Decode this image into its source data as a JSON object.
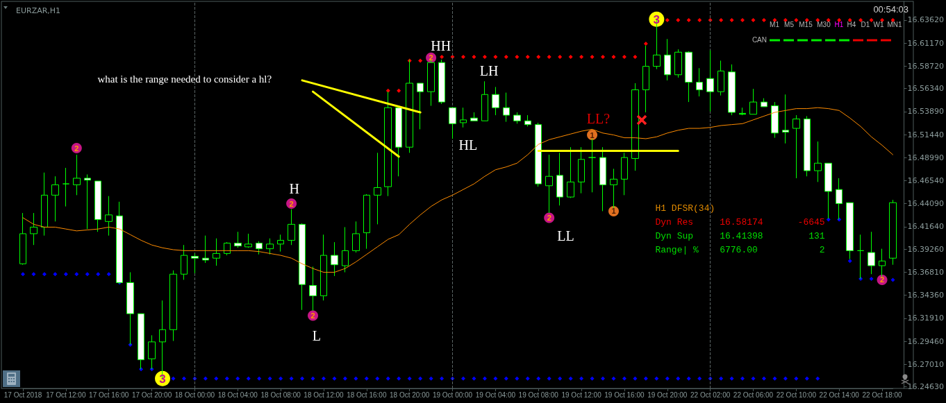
{
  "chart_data": {
    "type": "candlestick",
    "title": "EURZAR,H1",
    "categories": [
      "17 Oct 2018",
      null,
      null,
      null,
      "17 Oct 12:00",
      null,
      null,
      null,
      "17 Oct 16:00",
      null,
      null,
      null,
      "17 Oct 20:00",
      null,
      null,
      null,
      "18 Oct 00:00",
      null,
      null,
      null,
      "18 Oct 04:00",
      null,
      null,
      null,
      "18 Oct 08:00",
      null,
      null,
      null,
      "18 Oct 12:00",
      null,
      null,
      null,
      "18 Oct 16:00",
      null,
      null,
      null,
      "18 Oct 20:00",
      null,
      null,
      null,
      "19 Oct 00:00",
      null,
      null,
      null,
      "19 Oct 04:00",
      null,
      null,
      null,
      "19 Oct 08:00",
      null,
      null,
      null,
      "19 Oct 12:00",
      null,
      null,
      null,
      "19 Oct 16:00",
      null,
      null,
      null,
      "19 Oct 20:00",
      null,
      null,
      null,
      "22 Oct 02:00",
      null,
      null,
      null,
      "22 Oct 06:00",
      null,
      null,
      null,
      "22 Oct 10:00",
      null,
      null,
      null,
      "22 Oct 14:00",
      null,
      null,
      null,
      "22 Oct 18:00",
      null
    ],
    "color": "#00ff00",
    "colors": [
      "#000000",
      "#000000",
      "#000000",
      "#000000",
      "#00ff00",
      "#000000",
      "#ffffff",
      "#ffffff",
      "#000000",
      "#ffffff",
      "#ffffff",
      "#ffffff",
      "#000000",
      "#000000",
      "#000000",
      "#000000",
      "#ffffff",
      "#ffffff",
      "#000000",
      "#000000",
      "#ffffff",
      "#000000",
      "#ffffff",
      "#000000",
      "#000000",
      "#000000",
      "#ffffff",
      "#ffffff",
      "#000000",
      "#ffffff",
      "#000000",
      "#000000",
      "#000000",
      "#000000",
      "#000000",
      "#ffffff",
      "#000000",
      "#ffffff",
      "#000000",
      "#ffffff",
      "#ffffff",
      "#000000",
      "#ffffff",
      "#000000",
      "#ffffff",
      "#ffffff",
      "#ffffff",
      "#ffffff",
      "#ffffff",
      "#000000",
      "#ffffff",
      "#000000",
      "#000000",
      "#00ff00",
      "#ffffff",
      "#000000",
      "#000000",
      "#000000",
      "#000000",
      "#000000",
      "#ffffff",
      "#000000",
      "#ffffff",
      "#ffffff",
      "#ffffff",
      "#000000",
      "#ffffff",
      "#00ff00",
      "#000000",
      "#ffffff",
      "#ffffff",
      "#ffffff",
      "#000000",
      "#ffffff",
      "#000000",
      "#ffffff",
      "#ffffff",
      "#ffffff",
      "#00ff00",
      "#ffffff",
      "#000000",
      "#000000"
    ],
    "ohlc": [
      [
        16.377,
        16.431,
        16.376,
        16.409
      ],
      [
        16.409,
        16.431,
        16.397,
        16.416
      ],
      [
        16.416,
        16.474,
        16.407,
        16.45
      ],
      [
        16.45,
        16.47,
        16.422,
        16.461
      ],
      [
        16.462,
        16.479,
        16.438,
        16.462
      ],
      [
        16.461,
        16.493,
        16.45,
        16.468
      ],
      [
        16.468,
        16.472,
        16.414,
        16.466
      ],
      [
        16.465,
        16.465,
        16.411,
        16.424
      ],
      [
        16.422,
        16.449,
        16.407,
        16.429
      ],
      [
        16.428,
        16.443,
        16.356,
        16.357
      ],
      [
        16.357,
        16.368,
        16.291,
        16.324
      ],
      [
        16.324,
        16.324,
        16.265,
        16.275
      ],
      [
        16.276,
        16.301,
        16.265,
        16.294
      ],
      [
        16.294,
        16.338,
        16.254,
        16.307
      ],
      [
        16.307,
        16.37,
        16.295,
        16.366
      ],
      [
        16.366,
        16.397,
        16.36,
        16.386
      ],
      [
        16.385,
        16.388,
        16.367,
        16.383
      ],
      [
        16.383,
        16.407,
        16.378,
        16.381
      ],
      [
        16.383,
        16.404,
        16.375,
        16.388
      ],
      [
        16.388,
        16.4,
        16.386,
        16.399
      ],
      [
        16.399,
        16.411,
        16.394,
        16.396
      ],
      [
        16.395,
        16.409,
        16.394,
        16.398
      ],
      [
        16.399,
        16.401,
        16.387,
        16.393
      ],
      [
        16.393,
        16.404,
        16.387,
        16.398
      ],
      [
        16.398,
        16.408,
        16.39,
        16.402
      ],
      [
        16.402,
        16.435,
        16.397,
        16.419
      ],
      [
        16.419,
        16.42,
        16.328,
        16.355
      ],
      [
        16.354,
        16.374,
        16.327,
        16.343
      ],
      [
        16.343,
        16.408,
        16.338,
        16.386
      ],
      [
        16.386,
        16.4,
        16.364,
        16.376
      ],
      [
        16.375,
        16.416,
        16.368,
        16.391
      ],
      [
        16.391,
        16.422,
        16.389,
        16.409
      ],
      [
        16.41,
        16.451,
        16.393,
        16.45
      ],
      [
        16.45,
        16.495,
        16.419,
        16.458
      ],
      [
        16.459,
        16.56,
        16.449,
        16.543
      ],
      [
        16.543,
        16.543,
        16.47,
        16.501
      ],
      [
        16.501,
        16.594,
        16.495,
        16.569
      ],
      [
        16.569,
        16.569,
        16.52,
        16.56
      ],
      [
        16.56,
        16.594,
        16.545,
        16.591
      ],
      [
        16.591,
        16.594,
        16.547,
        16.549
      ],
      [
        16.543,
        16.543,
        16.51,
        16.526
      ],
      [
        16.527,
        16.543,
        16.522,
        16.53
      ],
      [
        16.532,
        16.538,
        16.529,
        16.529
      ],
      [
        16.529,
        16.571,
        16.529,
        16.557
      ],
      [
        16.557,
        16.565,
        16.535,
        16.543
      ],
      [
        16.543,
        16.559,
        16.528,
        16.535
      ],
      [
        16.535,
        16.538,
        16.526,
        16.529
      ],
      [
        16.529,
        16.535,
        16.523,
        16.525
      ],
      [
        16.525,
        16.527,
        16.459,
        16.462
      ],
      [
        16.46,
        16.493,
        16.431,
        16.47
      ],
      [
        16.471,
        16.495,
        16.439,
        16.448
      ],
      [
        16.448,
        16.501,
        16.447,
        16.464
      ],
      [
        16.464,
        16.501,
        16.452,
        16.488
      ],
      [
        16.49,
        16.51,
        16.453,
        16.49
      ],
      [
        16.49,
        16.501,
        16.433,
        16.461
      ],
      [
        16.461,
        16.478,
        16.436,
        16.467
      ],
      [
        16.467,
        16.495,
        16.45,
        16.49
      ],
      [
        16.489,
        16.569,
        16.476,
        16.562
      ],
      [
        16.562,
        16.609,
        16.538,
        16.587
      ],
      [
        16.587,
        16.636,
        16.584,
        16.599
      ],
      [
        16.599,
        16.616,
        16.572,
        16.578
      ],
      [
        16.578,
        16.605,
        16.575,
        16.602
      ],
      [
        16.602,
        16.603,
        16.549,
        16.57
      ],
      [
        16.57,
        16.585,
        16.555,
        16.562
      ],
      [
        16.574,
        16.604,
        16.539,
        16.56
      ],
      [
        16.56,
        16.593,
        16.556,
        16.582
      ],
      [
        16.581,
        16.589,
        16.535,
        16.538
      ],
      [
        16.536,
        16.543,
        16.535,
        16.537
      ],
      [
        16.536,
        16.563,
        16.536,
        16.549
      ],
      [
        16.549,
        16.553,
        16.544,
        16.544
      ],
      [
        16.545,
        16.549,
        16.511,
        16.516
      ],
      [
        16.519,
        16.557,
        16.505,
        16.517
      ],
      [
        16.521,
        16.535,
        16.468,
        16.531
      ],
      [
        16.531,
        16.534,
        16.47,
        16.476
      ],
      [
        16.476,
        16.507,
        16.464,
        16.484
      ],
      [
        16.484,
        16.484,
        16.425,
        16.454
      ],
      [
        16.456,
        16.468,
        16.424,
        16.441
      ],
      [
        16.442,
        16.442,
        16.382,
        16.391
      ],
      [
        16.391,
        16.408,
        16.361,
        16.391
      ],
      [
        16.389,
        16.411,
        16.366,
        16.375
      ],
      [
        16.375,
        16.393,
        16.363,
        16.38
      ],
      [
        16.383,
        16.445,
        16.376,
        16.442
      ]
    ],
    "series": [
      {
        "type": "line",
        "color": "#ff8c00",
        "marker": "none",
        "values": [
          16.426,
          16.419,
          16.416,
          16.416,
          16.414,
          16.412,
          16.413,
          16.414,
          16.416,
          16.414,
          16.408,
          16.402,
          16.397,
          16.394,
          16.392,
          16.391,
          16.391,
          16.391,
          16.391,
          16.391,
          16.391,
          16.391,
          16.39,
          16.388,
          16.386,
          16.383,
          16.377,
          16.372,
          16.368,
          16.368,
          16.372,
          16.379,
          16.387,
          16.395,
          16.403,
          16.408,
          16.419,
          16.429,
          16.438,
          16.445,
          16.45,
          16.456,
          16.462,
          16.47,
          16.477,
          16.48,
          16.484,
          16.493,
          16.504,
          16.509,
          16.512,
          16.515,
          16.518,
          16.52,
          16.516,
          16.514,
          16.511,
          16.511,
          16.51,
          16.512,
          16.516,
          16.519,
          16.521,
          16.521,
          16.522,
          16.524,
          16.525,
          16.526,
          16.53,
          16.534,
          16.538,
          16.54,
          16.542,
          16.542,
          16.543,
          16.542,
          16.54,
          16.532,
          16.523,
          16.512,
          16.503,
          16.493
        ]
      },
      {
        "type": "scatter",
        "color": "#ff0000",
        "marker": "diamond",
        "values": [
          null,
          null,
          null,
          null,
          null,
          null,
          null,
          null,
          null,
          null,
          null,
          null,
          null,
          null,
          null,
          null,
          null,
          null,
          null,
          null,
          null,
          null,
          null,
          null,
          null,
          null,
          null,
          null,
          null,
          null,
          null,
          null,
          null,
          null,
          16.561,
          16.561,
          16.593,
          16.593,
          null,
          16.597,
          16.597,
          16.597,
          16.597,
          16.597,
          16.597,
          16.597,
          16.597,
          16.597,
          16.597,
          16.597,
          16.597,
          16.597,
          16.597,
          16.597,
          16.597,
          16.597,
          16.597,
          16.597,
          16.611,
          null,
          16.636,
          16.636,
          16.636,
          16.636,
          16.636,
          16.636,
          16.636,
          16.636,
          16.636,
          16.636,
          16.636,
          16.636,
          16.636,
          16.636,
          16.636,
          16.636,
          16.636,
          16.636,
          16.636,
          16.636,
          16.636,
          16.636
        ]
      },
      {
        "type": "scatter",
        "color": "#0000ff",
        "marker": "diamond",
        "values": [
          16.366,
          16.366,
          16.366,
          16.366,
          16.366,
          16.366,
          16.366,
          16.366,
          16.366,
          16.357,
          16.291,
          16.265,
          16.265,
          null,
          16.255,
          16.255,
          16.255,
          16.255,
          16.255,
          16.255,
          16.255,
          16.255,
          16.255,
          16.255,
          16.255,
          16.255,
          16.255,
          16.255,
          16.255,
          16.255,
          16.255,
          16.255,
          16.255,
          16.255,
          16.255,
          16.255,
          16.255,
          16.255,
          16.255,
          16.255,
          16.255,
          16.255,
          16.255,
          16.255,
          16.255,
          16.255,
          16.255,
          16.255,
          16.255,
          16.255,
          16.255,
          16.255,
          16.255,
          16.255,
          16.255,
          16.255,
          16.255,
          16.255,
          16.255,
          16.255,
          16.255,
          16.255,
          16.255,
          16.255,
          16.255,
          16.255,
          16.255,
          16.255,
          16.255,
          16.255,
          16.255,
          16.255,
          16.255,
          16.255,
          16.255,
          16.424,
          16.424,
          16.38,
          16.361,
          16.361,
          null,
          16.36
        ]
      },
      {
        "type": "line",
        "color": "#ffff00",
        "marker": "none",
        "values": [
          null,
          null,
          null,
          null,
          null,
          null,
          null,
          null,
          null,
          null,
          null,
          null,
          null,
          null,
          null,
          null,
          null,
          null,
          null,
          null,
          null,
          null,
          null,
          null,
          null,
          null,
          null,
          null,
          null,
          null,
          null,
          null,
          null,
          null,
          null,
          null,
          null,
          null,
          null,
          null,
          null,
          null,
          null,
          null,
          null,
          null,
          null,
          null,
          16.497,
          16.497,
          16.497,
          16.497,
          16.497,
          16.497,
          16.497,
          16.497,
          16.497,
          16.497,
          16.497,
          16.497,
          16.497,
          16.497,
          null,
          null,
          null,
          null,
          null,
          null,
          null,
          null,
          null,
          null,
          null,
          null,
          null,
          null,
          null,
          null,
          null,
          null,
          null,
          null
        ]
      },
      {
        "type": "line",
        "color": "#ffff00",
        "marker": "none",
        "values": [
          null,
          null,
          null,
          null,
          null,
          null,
          null,
          null,
          null,
          null,
          null,
          null,
          null,
          null,
          null,
          null,
          null,
          null,
          null,
          null,
          null,
          null,
          null,
          null,
          null,
          null,
          16.572,
          null,
          null,
          null,
          null,
          null,
          null,
          null,
          null,
          null,
          null,
          16.538,
          null,
          null,
          null,
          null,
          null,
          null,
          null,
          null,
          null,
          null,
          null,
          null,
          null,
          null,
          null,
          null,
          null,
          null,
          null,
          null,
          null,
          null,
          null,
          null,
          null,
          null,
          null,
          null,
          null,
          null,
          null,
          null,
          null,
          null,
          null,
          null,
          null,
          null,
          null,
          null,
          null,
          null,
          null,
          null
        ]
      },
      {
        "type": "line",
        "color": "#ffff00",
        "marker": "none",
        "values": [
          null,
          null,
          null,
          null,
          null,
          null,
          null,
          null,
          null,
          null,
          null,
          null,
          null,
          null,
          null,
          null,
          null,
          null,
          null,
          null,
          null,
          null,
          null,
          null,
          null,
          null,
          null,
          16.56,
          null,
          null,
          null,
          null,
          null,
          null,
          null,
          16.491,
          null,
          null,
          null,
          null,
          null,
          null,
          null,
          null,
          null,
          null,
          null,
          null,
          null,
          null,
          null,
          null,
          null,
          null,
          null,
          null,
          null,
          null,
          null,
          null,
          null,
          null,
          null,
          null,
          null,
          null,
          null,
          null,
          null,
          null,
          null,
          null,
          null,
          null,
          null,
          null,
          null,
          null,
          null,
          null,
          null,
          null
        ]
      },
      {
        "type": "scatter",
        "color": "#c71585",
        "marker": "circle",
        "values": [
          null,
          null,
          null,
          null,
          null,
          16.5,
          null,
          null,
          null,
          null,
          null,
          null,
          null,
          null,
          null,
          null,
          null,
          null,
          null,
          null,
          null,
          null,
          null,
          null,
          null,
          16.441,
          null,
          16.322,
          null,
          null,
          null,
          null,
          null,
          null,
          null,
          null,
          null,
          null,
          16.596,
          null,
          null,
          null,
          null,
          null,
          null,
          null,
          null,
          null,
          null,
          16.426,
          null,
          null,
          null,
          null,
          null,
          null,
          null,
          null,
          null,
          null,
          null,
          null,
          null,
          null,
          null,
          null,
          null,
          null,
          null,
          null,
          null,
          null,
          null,
          null,
          null,
          null,
          null,
          null,
          null,
          null,
          16.36,
          null
        ]
      },
      {
        "type": "scatter",
        "color": "#e07020",
        "marker": "circle",
        "values": [
          null,
          null,
          null,
          null,
          null,
          null,
          null,
          null,
          null,
          null,
          null,
          null,
          null,
          null,
          null,
          null,
          null,
          null,
          null,
          null,
          null,
          null,
          null,
          null,
          null,
          null,
          null,
          null,
          null,
          null,
          null,
          null,
          null,
          null,
          null,
          null,
          null,
          null,
          null,
          null,
          null,
          null,
          null,
          null,
          null,
          null,
          null,
          null,
          null,
          null,
          null,
          null,
          null,
          16.514,
          null,
          16.433,
          null,
          null,
          null,
          null,
          null,
          null,
          null,
          null,
          null,
          null,
          null,
          null,
          null,
          null,
          null,
          null,
          null,
          null,
          null,
          null,
          null,
          null,
          null,
          null,
          null,
          null
        ]
      },
      {
        "type": "scatter",
        "color": "#ffff00",
        "marker": "circle",
        "values": [
          null,
          null,
          null,
          null,
          null,
          null,
          null,
          null,
          null,
          null,
          null,
          null,
          null,
          16.255,
          null,
          null,
          null,
          null,
          null,
          null,
          null,
          null,
          null,
          null,
          null,
          null,
          null,
          null,
          null,
          null,
          null,
          null,
          null,
          null,
          null,
          null,
          null,
          null,
          null,
          null,
          null,
          null,
          null,
          null,
          null,
          null,
          null,
          null,
          null,
          null,
          null,
          null,
          null,
          null,
          null,
          null,
          null,
          null,
          null,
          16.637,
          null,
          null,
          null,
          null,
          null,
          null,
          null,
          null,
          null,
          null,
          null,
          null,
          null,
          null,
          null,
          null,
          null,
          null,
          null,
          null,
          null,
          null
        ]
      }
    ],
    "ylim": [
      16.2445,
      16.656
    ],
    "yticks": [
      {
        "value": 16.6362,
        "label": "16.63620"
      },
      {
        "value": 16.6117,
        "label": "16.61170"
      },
      {
        "value": 16.5872,
        "label": "16.58720"
      },
      {
        "value": 16.5634,
        "label": "16.56340"
      },
      {
        "value": 16.5389,
        "label": "16.53890"
      },
      {
        "value": 16.5144,
        "label": "16.51440"
      },
      {
        "value": 16.4899,
        "label": "16.48990"
      },
      {
        "value": 16.4654,
        "label": "16.46540"
      },
      {
        "value": 16.4409,
        "label": "16.44090"
      },
      {
        "value": 16.4164,
        "label": "16.41640"
      },
      {
        "value": 16.3926,
        "label": "16.39260"
      },
      {
        "value": 16.3681,
        "label": "16.36810"
      },
      {
        "value": 16.3436,
        "label": "16.34360"
      },
      {
        "value": 16.3191,
        "label": "16.31910"
      },
      {
        "value": 16.2946,
        "label": "16.29460"
      },
      {
        "value": 16.2701,
        "label": "16.27010"
      },
      {
        "value": 16.2463,
        "label": "16.24630"
      }
    ],
    "ref_lines": [
      {
        "axis": "x",
        "value": "18 Oct 00:00",
        "color": "#5a6464",
        "line_style": "dashed"
      },
      {
        "axis": "x",
        "value": "19 Oct 00:00",
        "color": "#5a6464",
        "line_style": "dashed"
      },
      {
        "axis": "x",
        "value": "22 Oct 02:00",
        "color": "#5a6464",
        "line_style": "dashed"
      }
    ],
    "grid": false,
    "annotations": [
      "what is the range needed to consider a hl?",
      "H",
      "L",
      "HH",
      "LH",
      "HL",
      "LL?",
      "LL",
      "00:54:03",
      "M1",
      "M5",
      "M15",
      "M30",
      "H1",
      "H4",
      "D1",
      "W1",
      "MN1",
      "CAN",
      "H1 DFSR(34)",
      "Dyn Res",
      "16.58174",
      "-6645",
      "Dyn Sup",
      "16.41398",
      "131",
      "Range| %",
      "6776.00",
      "2",
      {
        "text": "2",
        "y": 16.5
      },
      {
        "text": "2",
        "y": 16.441
      },
      {
        "text": "2",
        "y": 16.322
      },
      {
        "text": "2",
        "y": 16.596
      },
      {
        "text": "2",
        "y": 16.426
      },
      {
        "text": "2",
        "y": 16.36
      },
      {
        "text": "1",
        "y": 16.514
      },
      {
        "text": "1",
        "y": 16.433
      },
      {
        "text": "3",
        "y": 16.255
      },
      {
        "text": "3",
        "y": 16.637
      }
    ]
  }
}
